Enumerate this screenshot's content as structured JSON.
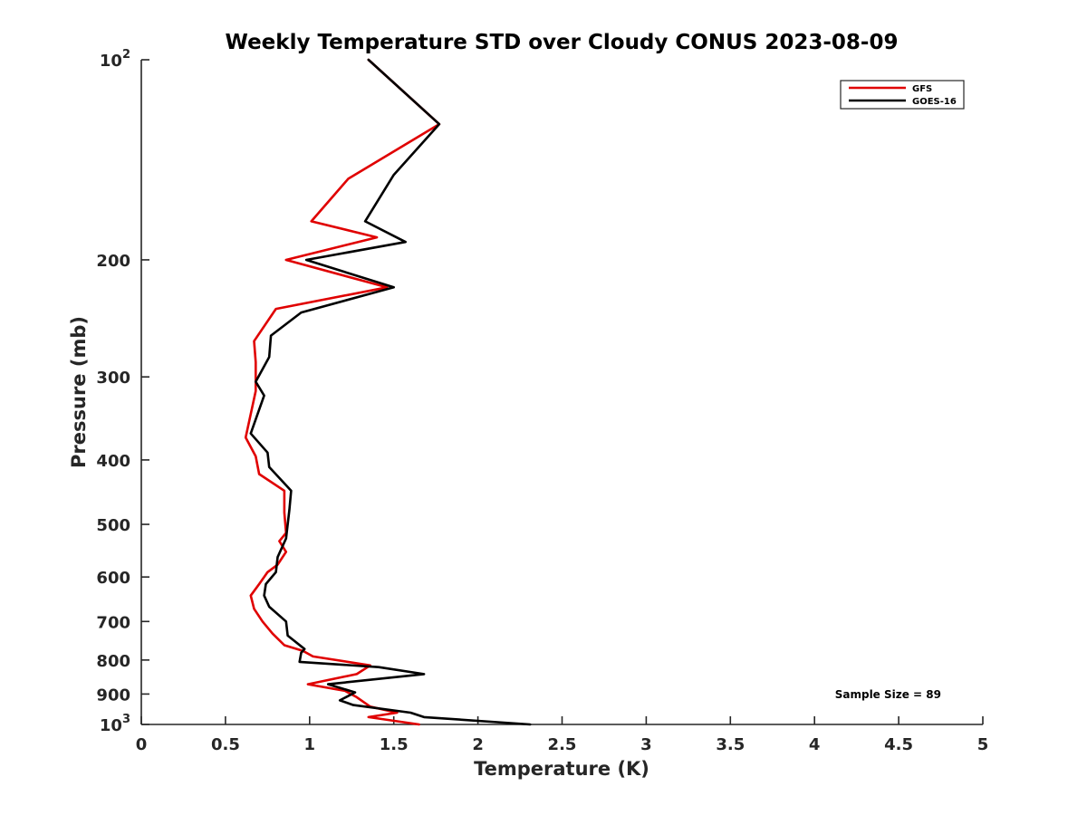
{
  "chart_data": {
    "type": "line",
    "title": "Weekly Temperature STD over Cloudy CONUS 2023-08-09",
    "xlabel": "Temperature (K)",
    "ylabel": "Pressure (mb)",
    "xlim": [
      0,
      5
    ],
    "ylim": [
      100,
      1000
    ],
    "yscale": "log",
    "y_reversed": true,
    "grid": false,
    "legend_position": "top-right",
    "x_ticks": [
      {
        "value": 0,
        "label": "0"
      },
      {
        "value": 0.5,
        "label": "0.5"
      },
      {
        "value": 1,
        "label": "1"
      },
      {
        "value": 1.5,
        "label": "1.5"
      },
      {
        "value": 2,
        "label": "2"
      },
      {
        "value": 2.5,
        "label": "2.5"
      },
      {
        "value": 3,
        "label": "3"
      },
      {
        "value": 3.5,
        "label": "3.5"
      },
      {
        "value": 4,
        "label": "4"
      },
      {
        "value": 4.5,
        "label": "4.5"
      },
      {
        "value": 5,
        "label": "5"
      }
    ],
    "y_ticks": [
      {
        "value": 100,
        "base": "10",
        "exp": "2"
      },
      {
        "value": 200,
        "label": "200"
      },
      {
        "value": 300,
        "label": "300"
      },
      {
        "value": 400,
        "label": "400"
      },
      {
        "value": 500,
        "label": "500"
      },
      {
        "value": 600,
        "label": "600"
      },
      {
        "value": 700,
        "label": "700"
      },
      {
        "value": 800,
        "label": "800"
      },
      {
        "value": 900,
        "label": "900"
      },
      {
        "value": 1000,
        "base": "10",
        "exp": "3"
      }
    ],
    "annotation": "Sample Size = 89",
    "series": [
      {
        "name": "GFS",
        "color": "#e00000",
        "points": [
          [
            1.35,
            100
          ],
          [
            1.77,
            125
          ],
          [
            1.23,
            151
          ],
          [
            1.01,
            175
          ],
          [
            1.4,
            185
          ],
          [
            0.86,
            200
          ],
          [
            1.46,
            220
          ],
          [
            0.8,
            237
          ],
          [
            0.67,
            265
          ],
          [
            0.68,
            285
          ],
          [
            0.68,
            315
          ],
          [
            0.62,
            370
          ],
          [
            0.68,
            395
          ],
          [
            0.7,
            420
          ],
          [
            0.85,
            445
          ],
          [
            0.85,
            480
          ],
          [
            0.86,
            515
          ],
          [
            0.82,
            530
          ],
          [
            0.86,
            550
          ],
          [
            0.81,
            575
          ],
          [
            0.75,
            590
          ],
          [
            0.7,
            615
          ],
          [
            0.65,
            640
          ],
          [
            0.67,
            670
          ],
          [
            0.72,
            700
          ],
          [
            0.78,
            730
          ],
          [
            0.85,
            760
          ],
          [
            0.96,
            775
          ],
          [
            1.02,
            790
          ],
          [
            1.36,
            815
          ],
          [
            1.28,
            840
          ],
          [
            0.99,
            870
          ],
          [
            1.21,
            890
          ],
          [
            1.28,
            910
          ],
          [
            1.36,
            940
          ],
          [
            1.52,
            960
          ],
          [
            1.35,
            975
          ],
          [
            1.65,
            1000
          ]
        ]
      },
      {
        "name": "GOES-16",
        "color": "#000000",
        "points": [
          [
            1.35,
            100
          ],
          [
            1.77,
            125
          ],
          [
            1.5,
            149
          ],
          [
            1.33,
            175
          ],
          [
            1.57,
            188
          ],
          [
            0.98,
            200
          ],
          [
            1.5,
            220
          ],
          [
            0.95,
            240
          ],
          [
            0.77,
            260
          ],
          [
            0.76,
            280
          ],
          [
            0.68,
            305
          ],
          [
            0.73,
            320
          ],
          [
            0.65,
            365
          ],
          [
            0.75,
            390
          ],
          [
            0.76,
            410
          ],
          [
            0.89,
            445
          ],
          [
            0.88,
            475
          ],
          [
            0.86,
            525
          ],
          [
            0.81,
            560
          ],
          [
            0.8,
            590
          ],
          [
            0.74,
            615
          ],
          [
            0.73,
            640
          ],
          [
            0.76,
            665
          ],
          [
            0.86,
            700
          ],
          [
            0.87,
            735
          ],
          [
            0.97,
            770
          ],
          [
            0.95,
            780
          ],
          [
            0.94,
            805
          ],
          [
            1.41,
            820
          ],
          [
            1.68,
            840
          ],
          [
            1.11,
            870
          ],
          [
            1.27,
            895
          ],
          [
            1.18,
            920
          ],
          [
            1.26,
            935
          ],
          [
            1.6,
            960
          ],
          [
            1.68,
            975
          ],
          [
            2.31,
            1000
          ]
        ]
      }
    ]
  }
}
